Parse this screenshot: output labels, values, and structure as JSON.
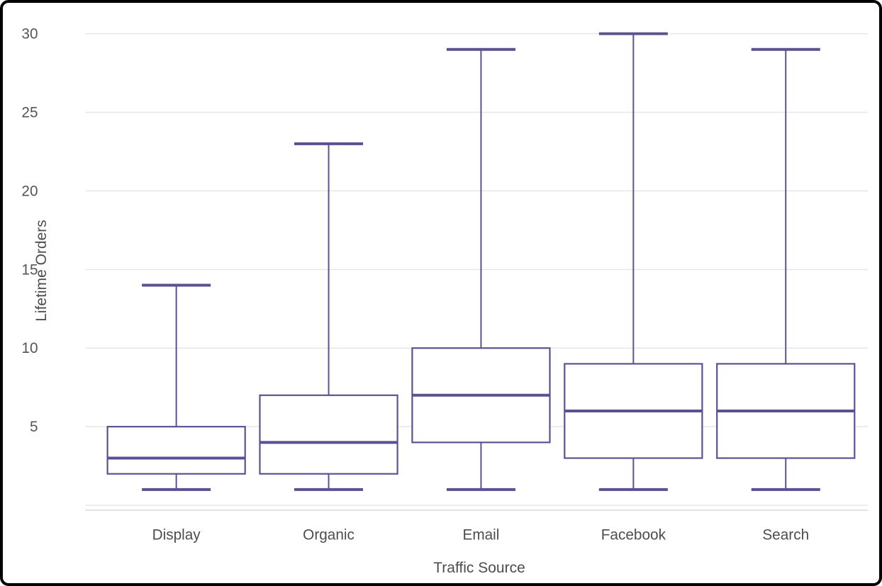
{
  "chart_data": {
    "type": "boxplot",
    "title": "",
    "xlabel": "Traffic Source",
    "ylabel": "Lifetime Orders",
    "categories": [
      "Display",
      "Organic",
      "Email",
      "Facebook",
      "Search"
    ],
    "series": [
      {
        "name": "Display",
        "min": 1,
        "q1": 2,
        "median": 3,
        "q3": 5,
        "max": 14
      },
      {
        "name": "Organic",
        "min": 1,
        "q1": 2,
        "median": 4,
        "q3": 7,
        "max": 23
      },
      {
        "name": "Email",
        "min": 1,
        "q1": 4,
        "median": 7,
        "q3": 10,
        "max": 29
      },
      {
        "name": "Facebook",
        "min": 1,
        "q1": 3,
        "median": 6,
        "q3": 9,
        "max": 30
      },
      {
        "name": "Search",
        "min": 1,
        "q1": 3,
        "median": 6,
        "q3": 9,
        "max": 29
      }
    ],
    "y_ticks": [
      5,
      10,
      15,
      20,
      25,
      30
    ],
    "ylim": [
      0,
      31
    ],
    "grid": true,
    "legend": "none",
    "colors": {
      "box_stroke": "#5a5191",
      "box_fill": "#ffffff",
      "gridline": "#e7e7e7",
      "axis_line": "#dadada",
      "tick_text": "#555555",
      "category_text": "#4d4d4d",
      "frame_border": "#000000",
      "background": "#ffffff"
    }
  }
}
